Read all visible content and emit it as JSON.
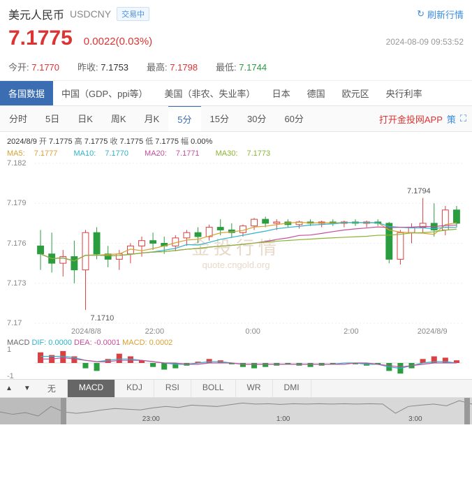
{
  "header": {
    "title_cn": "美元人民币",
    "title_en": "USDCNY",
    "status_badge": "交易中",
    "refresh_label": "刷新行情",
    "price": "7.1775",
    "change": "0.0022(0.03%)",
    "timestamp": "2024-08-09 09:53:52",
    "price_color": "#d33"
  },
  "ohlc": {
    "open_label": "今开:",
    "open": "7.1770",
    "open_color": "red",
    "prev_label": "昨收:",
    "prev": "7.1753",
    "high_label": "最高:",
    "high": "7.1798",
    "high_color": "red",
    "low_label": "最低:",
    "low": "7.1744",
    "low_color": "green"
  },
  "tabs_data": {
    "items": [
      "各国数据",
      "中国（GDP、ppi等）",
      "美国（非农、失业率）",
      "日本",
      "德国",
      "欧元区",
      "央行利率"
    ],
    "active_index": 0
  },
  "tabs_time": {
    "items": [
      "分时",
      "5日",
      "日K",
      "周K",
      "月K",
      "5分",
      "15分",
      "30分",
      "60分"
    ],
    "active_index": 5,
    "app_link": "打开金投网APP",
    "strategy": "策"
  },
  "chart": {
    "type": "candlestick",
    "meta_date": "2024/8/9",
    "meta_open_l": "开",
    "meta_open": "7.1775",
    "meta_high_l": "高",
    "meta_high": "7.1775",
    "meta_close_l": "收",
    "meta_close": "7.1775",
    "meta_low_l": "低",
    "meta_low": "7.1775",
    "meta_amp_l": "幅",
    "meta_amp": "0.00%",
    "ma": {
      "ma5_l": "MA5:",
      "ma5": "7.1777",
      "ma10_l": "MA10:",
      "ma10": "7.1770",
      "ma20_l": "MA20:",
      "ma20": "7.1771",
      "ma30_l": "MA30:",
      "ma30": "7.1773"
    },
    "ylim": [
      7.17,
      7.182
    ],
    "yticks": [
      "7.182",
      "7.179",
      "7.176",
      "7.173",
      "7.17"
    ],
    "xticks": [
      {
        "pos": 0.12,
        "label": "2024/8/8"
      },
      {
        "pos": 0.28,
        "label": "22:00"
      },
      {
        "pos": 0.51,
        "label": "0:00"
      },
      {
        "pos": 0.74,
        "label": "2:00"
      },
      {
        "pos": 0.93,
        "label": "2024/8/9"
      }
    ],
    "annot_low": {
      "label": "7.1710",
      "x": 0.13,
      "y_val": 7.171
    },
    "annot_high": {
      "label": "7.1794",
      "x": 0.92,
      "y_val": 7.1794
    },
    "watermark_cn": "金投行情",
    "watermark_en": "quote.cngold.org",
    "colors": {
      "up": "#d94040",
      "down": "#2a9d3f",
      "ma5": "#d8a030",
      "ma10": "#2db3c7",
      "ma20": "#c44d9c",
      "ma30": "#8ab52f",
      "grid": "#eeeeee",
      "bg": "#ffffff"
    },
    "candles": [
      {
        "o": 7.1758,
        "h": 7.177,
        "l": 7.174,
        "c": 7.1752
      },
      {
        "o": 7.1752,
        "h": 7.1768,
        "l": 7.1738,
        "c": 7.1745
      },
      {
        "o": 7.1745,
        "h": 7.1755,
        "l": 7.1735,
        "c": 7.175
      },
      {
        "o": 7.175,
        "h": 7.1762,
        "l": 7.173,
        "c": 7.174
      },
      {
        "o": 7.174,
        "h": 7.177,
        "l": 7.171,
        "c": 7.1768
      },
      {
        "o": 7.1768,
        "h": 7.1772,
        "l": 7.1748,
        "c": 7.1752
      },
      {
        "o": 7.1752,
        "h": 7.1758,
        "l": 7.1742,
        "c": 7.1748
      },
      {
        "o": 7.1748,
        "h": 7.1755,
        "l": 7.174,
        "c": 7.1752
      },
      {
        "o": 7.1752,
        "h": 7.176,
        "l": 7.1745,
        "c": 7.1758
      },
      {
        "o": 7.1758,
        "h": 7.1765,
        "l": 7.175,
        "c": 7.1762
      },
      {
        "o": 7.1762,
        "h": 7.1768,
        "l": 7.1755,
        "c": 7.176
      },
      {
        "o": 7.176,
        "h": 7.1765,
        "l": 7.1752,
        "c": 7.1758
      },
      {
        "o": 7.1758,
        "h": 7.1766,
        "l": 7.1754,
        "c": 7.1764
      },
      {
        "o": 7.1764,
        "h": 7.177,
        "l": 7.1758,
        "c": 7.1768
      },
      {
        "o": 7.1768,
        "h": 7.1772,
        "l": 7.176,
        "c": 7.1765
      },
      {
        "o": 7.1765,
        "h": 7.1774,
        "l": 7.1762,
        "c": 7.1772
      },
      {
        "o": 7.1772,
        "h": 7.1778,
        "l": 7.1766,
        "c": 7.177
      },
      {
        "o": 7.177,
        "h": 7.1775,
        "l": 7.1764,
        "c": 7.1768
      },
      {
        "o": 7.1768,
        "h": 7.1774,
        "l": 7.1765,
        "c": 7.1773
      },
      {
        "o": 7.1773,
        "h": 7.1779,
        "l": 7.177,
        "c": 7.1778
      },
      {
        "o": 7.1778,
        "h": 7.178,
        "l": 7.1772,
        "c": 7.1775
      },
      {
        "o": 7.1775,
        "h": 7.1778,
        "l": 7.177,
        "c": 7.1776
      },
      {
        "o": 7.1776,
        "h": 7.1778,
        "l": 7.1772,
        "c": 7.1774
      },
      {
        "o": 7.1774,
        "h": 7.1777,
        "l": 7.1771,
        "c": 7.1776
      },
      {
        "o": 7.1776,
        "h": 7.1778,
        "l": 7.1773,
        "c": 7.1775
      },
      {
        "o": 7.1775,
        "h": 7.1777,
        "l": 7.1772,
        "c": 7.1776
      },
      {
        "o": 7.1776,
        "h": 7.1778,
        "l": 7.1773,
        "c": 7.1775
      },
      {
        "o": 7.1775,
        "h": 7.1777,
        "l": 7.1772,
        "c": 7.1776
      },
      {
        "o": 7.1776,
        "h": 7.1778,
        "l": 7.1773,
        "c": 7.1775
      },
      {
        "o": 7.1775,
        "h": 7.1777,
        "l": 7.1772,
        "c": 7.1776
      },
      {
        "o": 7.1776,
        "h": 7.1778,
        "l": 7.1773,
        "c": 7.1775
      },
      {
        "o": 7.1775,
        "h": 7.1776,
        "l": 7.1745,
        "c": 7.1748
      },
      {
        "o": 7.1748,
        "h": 7.177,
        "l": 7.1744,
        "c": 7.1768
      },
      {
        "o": 7.1768,
        "h": 7.1775,
        "l": 7.176,
        "c": 7.1772
      },
      {
        "o": 7.1772,
        "h": 7.1794,
        "l": 7.1768,
        "c": 7.1775
      },
      {
        "o": 7.1775,
        "h": 7.179,
        "l": 7.1765,
        "c": 7.177
      },
      {
        "o": 7.177,
        "h": 7.1788,
        "l": 7.1766,
        "c": 7.1785
      },
      {
        "o": 7.1785,
        "h": 7.1788,
        "l": 7.1772,
        "c": 7.1775
      }
    ]
  },
  "macd": {
    "label": "MACD",
    "dif_l": "DIF:",
    "dif": "0.0000",
    "dea_l": "DEA:",
    "dea": "-0.0001",
    "macd_l": "MACD:",
    "macd": "0.0002",
    "ylim": [
      -1,
      1
    ],
    "yticks": [
      "1",
      "-1"
    ],
    "bars": [
      0.8,
      0.6,
      0.9,
      0.5,
      -0.4,
      -0.6,
      0.3,
      0.7,
      0.5,
      0.2,
      -0.3,
      -0.5,
      -0.4,
      -0.2,
      0.1,
      0.3,
      0.2,
      -0.1,
      -0.3,
      -0.4,
      -0.3,
      -0.2,
      -0.1,
      -0.2,
      -0.3,
      -0.2,
      -0.1,
      0.0,
      -0.1,
      -0.2,
      -0.1,
      -0.6,
      -0.8,
      -0.4,
      0.3,
      0.5,
      0.4,
      0.2
    ],
    "line_dif": [
      0.5,
      0.5,
      0.5,
      0.4,
      0.2,
      0.1,
      0.2,
      0.3,
      0.3,
      0.2,
      0.1,
      0.0,
      -0.1,
      -0.1,
      0.0,
      0.1,
      0.1,
      0.0,
      -0.1,
      -0.1,
      -0.1,
      -0.1,
      -0.1,
      -0.1,
      -0.1,
      -0.1,
      -0.1,
      0.0,
      0.0,
      -0.1,
      -0.1,
      -0.3,
      -0.4,
      -0.2,
      0.0,
      0.1,
      0.1,
      0.0
    ],
    "line_dea": [
      0.3,
      0.3,
      0.4,
      0.3,
      0.2,
      0.1,
      0.1,
      0.2,
      0.2,
      0.2,
      0.1,
      0.0,
      0.0,
      -0.1,
      -0.1,
      0.0,
      0.0,
      0.0,
      -0.1,
      -0.1,
      -0.1,
      -0.1,
      -0.1,
      -0.1,
      -0.1,
      -0.1,
      -0.1,
      -0.1,
      0.0,
      0.0,
      -0.1,
      -0.2,
      -0.3,
      -0.2,
      -0.1,
      0.0,
      0.0,
      0.0
    ],
    "colors": {
      "up": "#d94040",
      "down": "#2a9d3f",
      "dif": "#2db3c7",
      "dea": "#c44d9c"
    }
  },
  "indicators": {
    "items": [
      "无",
      "MACD",
      "KDJ",
      "RSI",
      "BOLL",
      "WR",
      "DMI"
    ],
    "active_index": 1
  },
  "scroll": {
    "thumb_l": 0.135,
    "thumb_r": 0.995,
    "xticks": [
      {
        "pos": 0.32,
        "label": "23:00"
      },
      {
        "pos": 0.6,
        "label": "1:00"
      },
      {
        "pos": 0.88,
        "label": "3:00"
      }
    ]
  }
}
